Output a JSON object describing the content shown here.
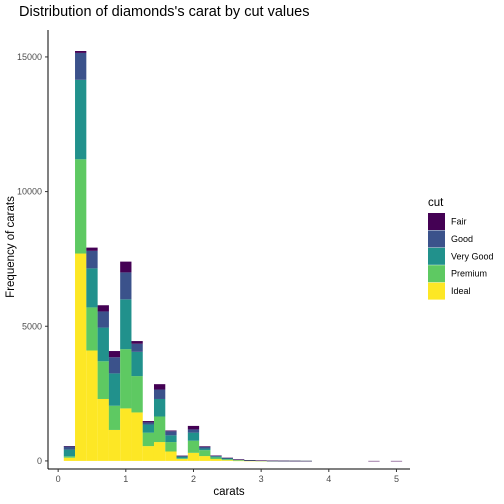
{
  "chart_data": {
    "type": "bar",
    "stacked": true,
    "title": "Distribution of diamonds's carat by cut values",
    "xlabel": "carats",
    "ylabel": "Frequency of carats",
    "xlim": [
      -0.15,
      5.2
    ],
    "ylim": [
      -300,
      16000
    ],
    "xticks": [
      0,
      1,
      2,
      3,
      4,
      5
    ],
    "yticks": [
      0,
      5000,
      10000,
      15000
    ],
    "grid": false,
    "legend": {
      "title": "cut",
      "position": "right",
      "entries": [
        "Fair",
        "Good",
        "Very Good",
        "Premium",
        "Ideal"
      ]
    },
    "bin_width": 0.167,
    "x": [
      0.167,
      0.333,
      0.5,
      0.667,
      0.833,
      1.0,
      1.167,
      1.333,
      1.5,
      1.667,
      1.833,
      2.0,
      2.167,
      2.333,
      2.5,
      2.667,
      2.833,
      3.0,
      3.167,
      3.333,
      3.5,
      3.667,
      3.833,
      4.0,
      4.167,
      4.333,
      4.5,
      4.667,
      4.833,
      5.0
    ],
    "series": [
      {
        "name": "Ideal",
        "color": "#FDE725",
        "values": [
          120,
          7700,
          4100,
          2300,
          1150,
          1950,
          1800,
          550,
          700,
          350,
          70,
          300,
          180,
          70,
          30,
          10,
          5,
          3,
          2,
          1,
          1,
          0,
          0,
          0,
          0,
          0,
          0,
          0,
          0,
          0
        ]
      },
      {
        "name": "Premium",
        "color": "#5EC962",
        "values": [
          50,
          3500,
          1600,
          1400,
          900,
          2200,
          1350,
          500,
          950,
          350,
          30,
          450,
          220,
          60,
          35,
          20,
          10,
          6,
          3,
          2,
          1,
          1,
          0,
          0,
          0,
          0,
          0,
          0,
          0,
          0
        ]
      },
      {
        "name": "Very Good",
        "color": "#21918C",
        "values": [
          250,
          2950,
          1450,
          1250,
          1200,
          1850,
          900,
          300,
          650,
          250,
          60,
          300,
          60,
          40,
          30,
          15,
          10,
          5,
          2,
          2,
          1,
          1,
          0,
          0,
          0,
          0,
          0,
          0,
          0,
          0
        ]
      },
      {
        "name": "Good",
        "color": "#3B528B",
        "values": [
          120,
          1000,
          650,
          600,
          600,
          1000,
          300,
          80,
          350,
          150,
          30,
          120,
          60,
          20,
          15,
          10,
          5,
          3,
          2,
          1,
          1,
          0,
          0,
          0,
          0,
          0,
          0,
          0,
          0,
          0
        ]
      },
      {
        "name": "Fair",
        "color": "#440154",
        "values": [
          10,
          70,
          120,
          230,
          230,
          400,
          100,
          50,
          200,
          30,
          5,
          130,
          25,
          10,
          10,
          5,
          3,
          2,
          1,
          1,
          1,
          1,
          0,
          0,
          0,
          0,
          0,
          1,
          0,
          1
        ]
      }
    ]
  }
}
